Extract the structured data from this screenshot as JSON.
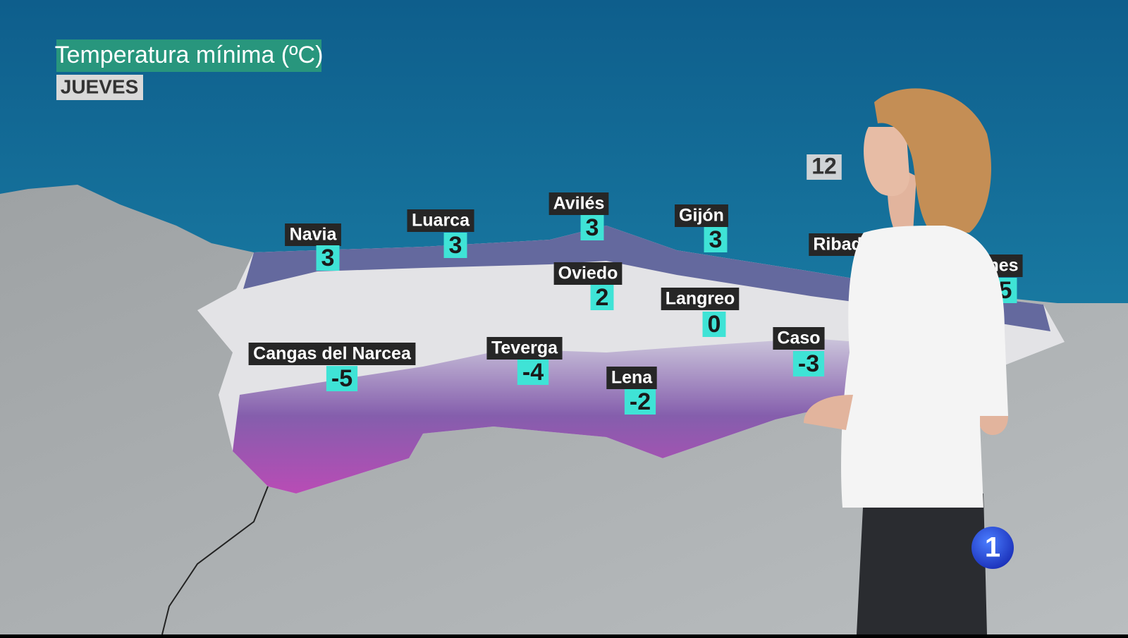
{
  "header": {
    "title": "Temperatura mínima (ºC)",
    "day": "JUEVES"
  },
  "cities": [
    {
      "name": "Navia",
      "value": 3
    },
    {
      "name": "Luarca",
      "value": 3
    },
    {
      "name": "Avilés",
      "value": 3
    },
    {
      "name": "Gijón",
      "value": 3
    },
    {
      "name": "Oviedo",
      "value": 2
    },
    {
      "name": "Langreo",
      "value": 0
    },
    {
      "name": "Cangas del Narcea",
      "value": -5
    },
    {
      "name": "Teverga",
      "value": -4
    },
    {
      "name": "Lena",
      "value": -2
    },
    {
      "name": "Caso",
      "value": -3
    },
    {
      "name": "Ribade"
    },
    {
      "name": "nes",
      "value": 5
    }
  ],
  "sea_value": 12,
  "logo": "1"
}
